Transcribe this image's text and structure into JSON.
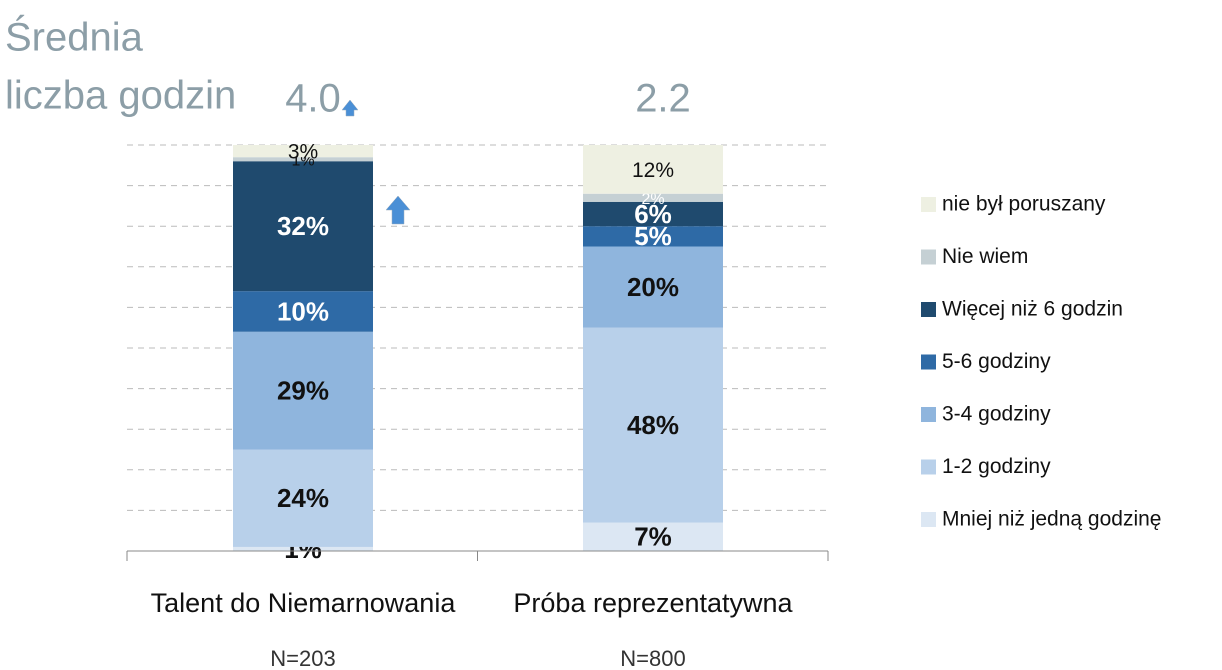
{
  "chart_data": {
    "type": "stacked_bar",
    "title_lines": [
      "Średnia",
      "liczba godzin"
    ],
    "annotations": [
      "4.0",
      "2.2"
    ],
    "notes": [
      "N=203",
      "N=800"
    ],
    "categories": [
      "Talent do Niemarnowania",
      "Próba reprezentatywna"
    ],
    "series": [
      {
        "name": "Mniej niż jedną godzinę",
        "color": "#dce7f3",
        "values": [
          1,
          7
        ],
        "value_labels": [
          "1%",
          "7%"
        ]
      },
      {
        "name": "1-2 godziny",
        "color": "#b8d0ea",
        "values": [
          24,
          48
        ],
        "value_labels": [
          "24%",
          "48%"
        ]
      },
      {
        "name": "3-4 godziny",
        "color": "#8fb5dd",
        "values": [
          29,
          20
        ],
        "value_labels": [
          "29%",
          "20%"
        ]
      },
      {
        "name": "5-6 godziny",
        "color": "#2e6aa6",
        "values": [
          10,
          5
        ],
        "value_labels": [
          "10%",
          "5%"
        ]
      },
      {
        "name": "Więcej niż 6 godzin",
        "color": "#1f4a6e",
        "values": [
          32,
          6
        ],
        "value_labels": [
          "32%",
          "6%"
        ]
      },
      {
        "name": "Nie wiem",
        "color": "#c5d0d4",
        "values": [
          1,
          2
        ],
        "value_labels": [
          "1%",
          "2%"
        ]
      },
      {
        "name": "nie był poruszany",
        "color": "#eef0e2",
        "values": [
          3,
          12
        ],
        "value_labels": [
          "3%",
          "12%"
        ]
      }
    ],
    "ylim": [
      0,
      100
    ],
    "yticks": [
      10,
      20,
      30,
      40,
      50,
      60,
      70,
      80,
      90,
      100
    ],
    "grid": true
  }
}
